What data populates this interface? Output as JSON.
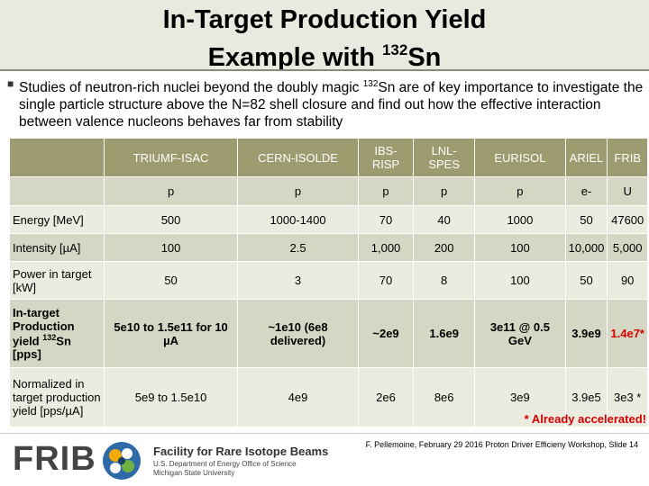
{
  "title": {
    "line1": "In-Target Production Yield",
    "line2_prefix": "Example with ",
    "line2_sup": "132",
    "line2_suffix": "Sn"
  },
  "bullet": {
    "part1": "Studies of neutron-rich nuclei beyond the doubly magic ",
    "sup": "132",
    "part2": "Sn are of key importance to investigate the single particle structure above the N=82 shell closure and find out how the effective interaction between valence nucleons behaves far from stability"
  },
  "table": {
    "headers": [
      "TRIUMF-ISAC",
      "CERN-ISOLDE",
      "IBS-RISP",
      "LNL-SPES",
      "EURISOL",
      "ARIEL",
      "FRIB"
    ],
    "rows": [
      {
        "label": "",
        "cells": [
          "p",
          "p",
          "p",
          "p",
          "p",
          "e-",
          "U"
        ]
      },
      {
        "label": "Energy [MeV]",
        "cells": [
          "500",
          "1000-1400",
          "70",
          "40",
          "1000",
          "50",
          "47600"
        ]
      },
      {
        "label": "Intensity [µA]",
        "cells": [
          "100",
          "2.5",
          "1,000",
          "200",
          "100",
          "10,000",
          "5,000"
        ]
      },
      {
        "label": "Power in target [kW]",
        "cells": [
          "50",
          "3",
          "70",
          "8",
          "100",
          "50",
          "90"
        ]
      },
      {
        "label_part1": "In-target Production yield ",
        "label_sup": "132",
        "label_part2": "Sn [pps]",
        "cells": [
          "5e10 to 1.5e11 for 10 µA",
          "~1e10 (6e8 delivered)",
          "~2e9",
          "1.6e9",
          "3e11 @ 0.5 GeV",
          "3.9e9",
          "1.4e7*"
        ]
      },
      {
        "label": "Normalized in target production yield [pps/µA]",
        "cells": [
          "5e9 to 1.5e10",
          "4e9",
          "2e6",
          "8e6",
          "3e9",
          "3.9e5",
          "3e3 *"
        ]
      }
    ]
  },
  "note": "* Already accelerated!",
  "footer": {
    "logo_text": "FRIB",
    "facility_title": "Facility for Rare Isotope Beams",
    "facility_sub1": "U.S. Department of Energy Office of Science",
    "facility_sub2": "Michigan State University",
    "citation": "F. Pellemoine, February 29 2016 Proton Driver Efficieny Workshop, Slide 14"
  },
  "colors": {
    "header_bg": "#9c9c70",
    "row_dark": "#d6d6c4",
    "row_light": "#ebebe0",
    "accent_red": "#d40000"
  }
}
